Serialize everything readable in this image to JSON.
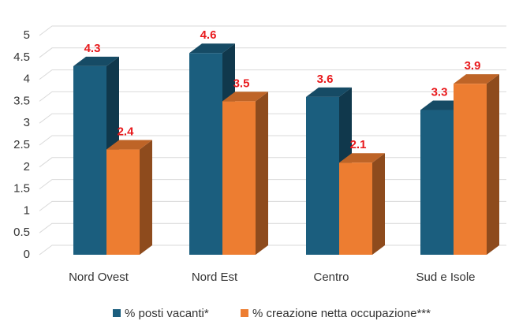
{
  "chart_data": {
    "type": "bar3d",
    "categories": [
      "Nord Ovest",
      "Nord Est",
      "Centro",
      "Sud e Isole"
    ],
    "series": [
      {
        "name": "% posti vacanti*",
        "color": "#1b5e7e",
        "values": [
          4.3,
          4.6,
          3.6,
          3.3
        ]
      },
      {
        "name": "% creazione netta occupazione***",
        "color": "#ed7d31",
        "values": [
          2.4,
          3.5,
          2.1,
          3.9
        ]
      }
    ],
    "ylim": [
      0,
      5
    ],
    "yticks": [
      0,
      0.5,
      1,
      1.5,
      2,
      2.5,
      3,
      3.5,
      4,
      4.5,
      5
    ],
    "grid": true,
    "legend": "bottom"
  }
}
